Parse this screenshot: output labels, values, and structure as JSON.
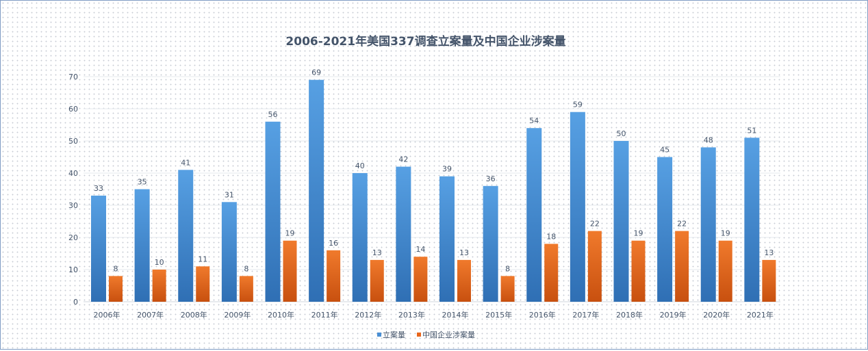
{
  "chart_data": {
    "type": "bar",
    "title": "2006-2021年美国337调查立案量及中国企业涉案量",
    "categories": [
      "2006年",
      "2007年",
      "2008年",
      "2009年",
      "2010年",
      "2011年",
      "2012年",
      "2013年",
      "2014年",
      "2015年",
      "2016年",
      "2017年",
      "2018年",
      "2019年",
      "2020年",
      "2021年"
    ],
    "series": [
      {
        "name": "立案量",
        "color": "#4a8fd4",
        "values": [
          33,
          35,
          41,
          31,
          56,
          69,
          40,
          42,
          39,
          36,
          54,
          59,
          50,
          45,
          48,
          51
        ]
      },
      {
        "name": "中国企业涉案量",
        "color": "#e8661c",
        "values": [
          8,
          10,
          11,
          8,
          19,
          16,
          13,
          14,
          13,
          8,
          18,
          22,
          19,
          22,
          19,
          13
        ]
      }
    ],
    "yticks": [
      0,
      10,
      20,
      30,
      40,
      50,
      60,
      70
    ],
    "ylim": [
      0,
      70
    ],
    "grid": true,
    "legend": "bottom"
  }
}
